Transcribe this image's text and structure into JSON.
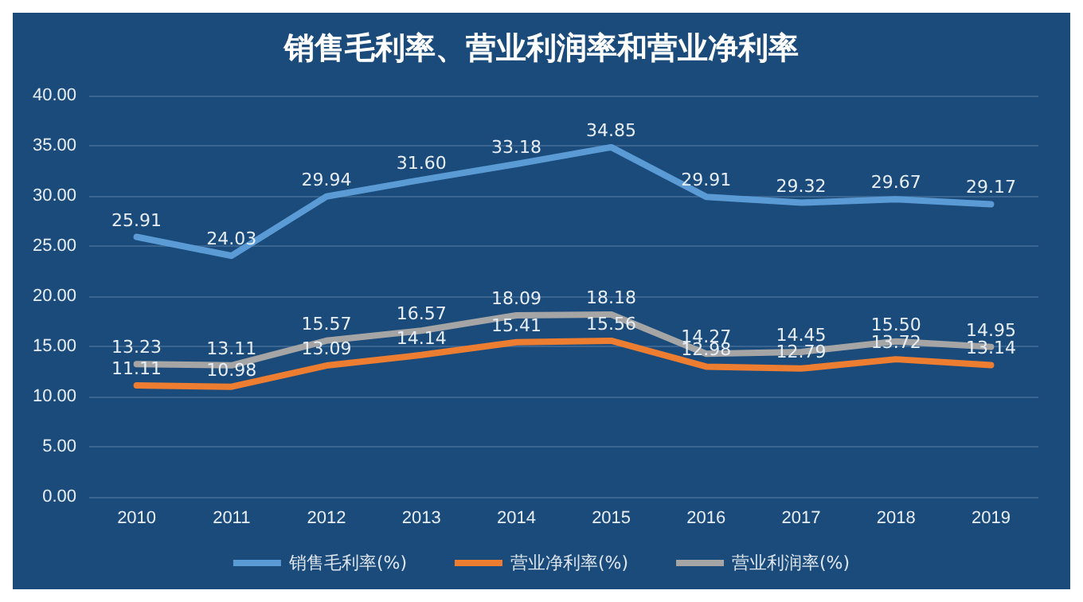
{
  "chart_data": {
    "type": "line",
    "title": "销售毛利率、营业利润率和营业净利率",
    "categories": [
      "2010",
      "2011",
      "2012",
      "2013",
      "2014",
      "2015",
      "2016",
      "2017",
      "2018",
      "2019"
    ],
    "series": [
      {
        "name": "销售毛利率(%)",
        "color": "#5b9bd5",
        "values": [
          25.91,
          24.03,
          29.94,
          31.6,
          33.18,
          34.85,
          29.91,
          29.32,
          29.67,
          29.17
        ],
        "value_labels": [
          "25.91",
          "24.03",
          "29.94",
          "31.60",
          "33.18",
          "34.85",
          "29.91",
          "29.32",
          "29.67",
          "29.17"
        ]
      },
      {
        "name": "营业净利率(%)",
        "color": "#ed7d31",
        "values": [
          11.11,
          10.98,
          13.09,
          14.14,
          15.41,
          15.56,
          12.98,
          12.79,
          13.72,
          13.14
        ],
        "value_labels": [
          "11.11",
          "10.98",
          "13.09",
          "14.14",
          "15.41",
          "15.56",
          "12.98",
          "12.79",
          "13.72",
          "13.14"
        ]
      },
      {
        "name": "营业利润率(%)",
        "color": "#a5a5a5",
        "values": [
          13.23,
          13.11,
          15.57,
          16.57,
          18.09,
          18.18,
          14.27,
          14.45,
          15.5,
          14.95
        ],
        "value_labels": [
          "13.23",
          "13.11",
          "15.57",
          "16.57",
          "18.09",
          "18.18",
          "14.27",
          "14.45",
          "15.50",
          "14.95"
        ]
      }
    ],
    "ylim": [
      0,
      40
    ],
    "yticks": [
      {
        "value": 0,
        "label": "0.00"
      },
      {
        "value": 5,
        "label": "5.00"
      },
      {
        "value": 10,
        "label": "10.00"
      },
      {
        "value": 15,
        "label": "15.00"
      },
      {
        "value": 20,
        "label": "20.00"
      },
      {
        "value": 25,
        "label": "25.00"
      },
      {
        "value": 30,
        "label": "30.00"
      },
      {
        "value": 35,
        "label": "35.00"
      },
      {
        "value": 40,
        "label": "40.00"
      }
    ],
    "grid": "y",
    "legend": "bottom",
    "marker": "none",
    "line_style": "solid"
  }
}
